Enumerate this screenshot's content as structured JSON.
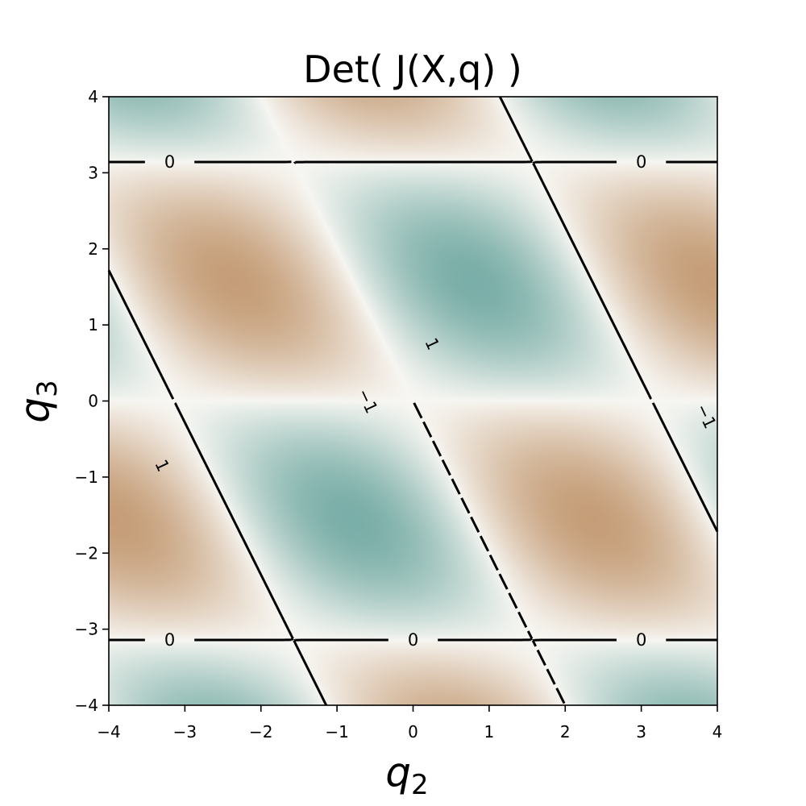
{
  "chart_data": {
    "type": "heatmap",
    "subtype": "filled image with contour lines",
    "title": "Det( J(X,q) )",
    "xlabel": {
      "symbol": "q",
      "subscript": "2"
    },
    "ylabel": {
      "symbol": "q",
      "subscript": "3"
    },
    "xlim": [
      -4,
      4
    ],
    "ylim": [
      -4,
      4
    ],
    "xticks": [
      -4,
      -3,
      -2,
      -1,
      0,
      1,
      2,
      3,
      4
    ],
    "yticks": [
      -4,
      -3,
      -2,
      -1,
      0,
      1,
      2,
      3,
      4
    ],
    "xtick_labels": [
      "−4",
      "−3",
      "−2",
      "−1",
      "0",
      "1",
      "2",
      "3",
      "4"
    ],
    "ytick_labels": [
      "−4",
      "−3",
      "−2",
      "−1",
      "0",
      "1",
      "2",
      "3",
      "4"
    ],
    "grid": false,
    "legend": "none",
    "function": "sin(q3) * sin(q2 + q3/2)",
    "colormap": {
      "negative": "#b9885a",
      "zero": "#f7f6f2",
      "positive": "#5b9c95"
    },
    "color_limits": [
      -1.3,
      1.3
    ],
    "contour_levels": [
      -1,
      0,
      1
    ],
    "contour_styles": {
      "-1": "dashed",
      "0": "solid",
      "1": "solid"
    },
    "contour_labels": [
      {
        "text": "0",
        "x": -3.2,
        "y": 3.1416,
        "rotation": 0
      },
      {
        "text": "0",
        "x": 3.0,
        "y": 3.1416,
        "rotation": 0
      },
      {
        "text": "0",
        "x": -3.2,
        "y": -3.1416,
        "rotation": 0
      },
      {
        "text": "0",
        "x": 0.0,
        "y": -3.1416,
        "rotation": 0
      },
      {
        "text": "0",
        "x": 3.0,
        "y": -3.1416,
        "rotation": 0
      },
      {
        "text": "1",
        "x": 0.25,
        "y": 0.75,
        "rotation": 65
      },
      {
        "text": "1",
        "x": -3.3,
        "y": -0.85,
        "rotation": 65
      },
      {
        "text": "−1",
        "x": -0.6,
        "y": 0.0,
        "rotation": 65
      },
      {
        "text": "−1",
        "x": 3.85,
        "y": -0.2,
        "rotation": 65
      }
    ]
  }
}
